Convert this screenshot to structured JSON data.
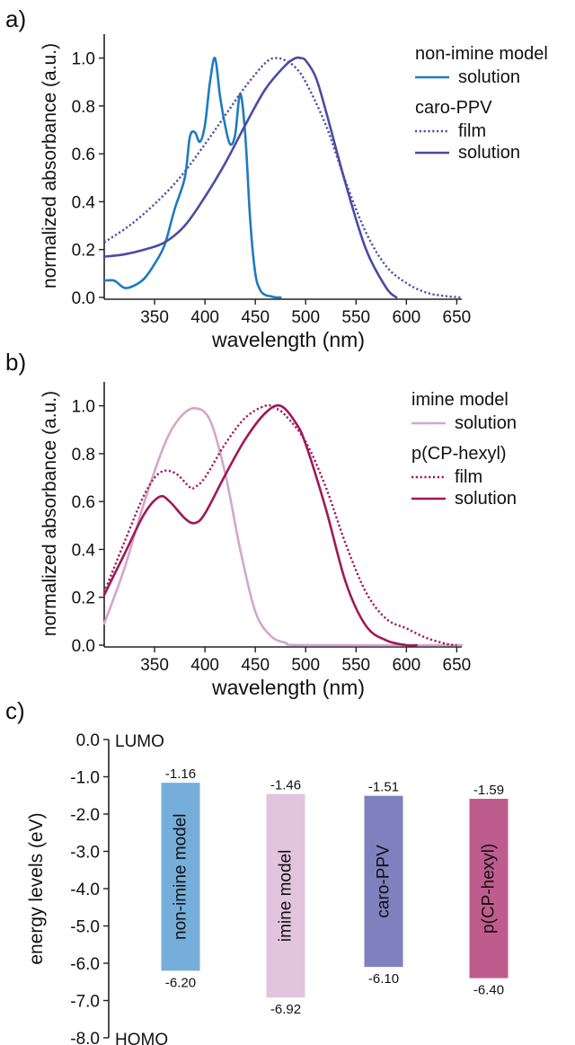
{
  "chart_data": [
    {
      "panel_label": "a)",
      "type": "line",
      "xlabel": "wavelength (nm)",
      "ylabel": "normalized absorbance (a.u.)",
      "xlim": [
        300,
        655
      ],
      "ylim": [
        0,
        1.1
      ],
      "xticks": [
        350,
        400,
        450,
        500,
        550,
        600,
        650
      ],
      "yticks": [
        0.0,
        0.2,
        0.4,
        0.6,
        0.8,
        1.0
      ],
      "yticks_labels": [
        "0.0",
        "0.2",
        "0.4",
        "0.6",
        "0.8",
        "1.0"
      ],
      "grid": false,
      "legend_position": "top-right",
      "legend_groups": [
        {
          "title": "non-imine model",
          "entries": [
            "solution"
          ]
        },
        {
          "title": "caro-PPV",
          "entries": [
            "film",
            "solution"
          ]
        }
      ],
      "series": [
        {
          "name": "solution",
          "group": "non-imine model",
          "color": "#1e7bc0",
          "style": "solid",
          "x": [
            300,
            310,
            320,
            330,
            340,
            350,
            360,
            370,
            380,
            385,
            390,
            395,
            400,
            405,
            410,
            415,
            420,
            425,
            430,
            435,
            440,
            445,
            450,
            455,
            460,
            465,
            470,
            475
          ],
          "y": [
            0.07,
            0.07,
            0.04,
            0.05,
            0.08,
            0.14,
            0.22,
            0.37,
            0.5,
            0.67,
            0.69,
            0.65,
            0.72,
            0.9,
            1.0,
            0.84,
            0.72,
            0.64,
            0.68,
            0.85,
            0.68,
            0.32,
            0.1,
            0.03,
            0.01,
            0.005,
            0.0,
            0.0
          ]
        },
        {
          "name": "film",
          "group": "caro-PPV",
          "color": "#4f4fa8",
          "style": "dotted",
          "x": [
            300,
            325,
            350,
            375,
            400,
            420,
            440,
            460,
            470,
            480,
            490,
            500,
            520,
            540,
            560,
            580,
            600,
            620,
            640,
            655
          ],
          "y": [
            0.23,
            0.3,
            0.39,
            0.5,
            0.64,
            0.76,
            0.88,
            0.98,
            1.0,
            0.99,
            0.96,
            0.9,
            0.72,
            0.48,
            0.27,
            0.13,
            0.06,
            0.02,
            0.005,
            0.0
          ]
        },
        {
          "name": "solution",
          "group": "caro-PPV",
          "color": "#4a4ba3",
          "style": "solid",
          "x": [
            300,
            320,
            340,
            360,
            380,
            400,
            420,
            440,
            460,
            480,
            490,
            495,
            500,
            510,
            520,
            540,
            560,
            580,
            590
          ],
          "y": [
            0.17,
            0.18,
            0.2,
            0.23,
            0.3,
            0.42,
            0.56,
            0.72,
            0.87,
            0.97,
            1.0,
            1.0,
            0.99,
            0.92,
            0.78,
            0.47,
            0.2,
            0.04,
            0.0
          ]
        }
      ]
    },
    {
      "panel_label": "b)",
      "type": "line",
      "xlabel": "wavelength (nm)",
      "ylabel": "normalized absorbance (a.u.)",
      "xlim": [
        300,
        655
      ],
      "ylim": [
        0,
        1.1
      ],
      "xticks": [
        350,
        400,
        450,
        500,
        550,
        600,
        650
      ],
      "yticks": [
        0.0,
        0.2,
        0.4,
        0.6,
        0.8,
        1.0
      ],
      "yticks_labels": [
        "0.0",
        "0.2",
        "0.4",
        "0.6",
        "0.8",
        "1.0"
      ],
      "grid": false,
      "legend_position": "top-right",
      "legend_groups": [
        {
          "title": "imine model",
          "entries": [
            "solution"
          ]
        },
        {
          "title": "p(CP-hexyl)",
          "entries": [
            "film",
            "solution"
          ]
        }
      ],
      "series": [
        {
          "name": "solution",
          "group": "imine model",
          "color": "#d4a6cc",
          "style": "solid",
          "x": [
            300,
            320,
            340,
            360,
            375,
            390,
            405,
            420,
            435,
            450,
            465,
            480,
            500,
            655
          ],
          "y": [
            0.09,
            0.32,
            0.6,
            0.84,
            0.95,
            0.99,
            0.94,
            0.72,
            0.4,
            0.14,
            0.04,
            0.01,
            0.0,
            0.0
          ]
        },
        {
          "name": "film",
          "group": "p(CP-hexyl)",
          "color": "#a0175a",
          "style": "dotted",
          "x": [
            300,
            320,
            340,
            355,
            370,
            385,
            390,
            400,
            420,
            440,
            460,
            470,
            480,
            500,
            520,
            540,
            560,
            580,
            600,
            620,
            640,
            650
          ],
          "y": [
            0.22,
            0.43,
            0.63,
            0.72,
            0.72,
            0.66,
            0.66,
            0.7,
            0.84,
            0.95,
            1.0,
            0.99,
            0.96,
            0.85,
            0.66,
            0.42,
            0.22,
            0.11,
            0.07,
            0.03,
            0.005,
            0.0
          ]
        },
        {
          "name": "solution",
          "group": "p(CP-hexyl)",
          "color": "#a0175a",
          "style": "solid",
          "x": [
            300,
            320,
            340,
            355,
            365,
            380,
            390,
            400,
            420,
            440,
            460,
            475,
            490,
            500,
            520,
            540,
            560,
            580,
            600,
            610
          ],
          "y": [
            0.21,
            0.38,
            0.55,
            0.62,
            0.6,
            0.53,
            0.51,
            0.55,
            0.71,
            0.86,
            0.97,
            1.0,
            0.93,
            0.84,
            0.57,
            0.26,
            0.08,
            0.02,
            0.0,
            0.0
          ]
        }
      ]
    },
    {
      "panel_label": "c)",
      "type": "bar",
      "ylabel": "energy levels (eV)",
      "ylim": [
        -8.0,
        0.0
      ],
      "yticks": [
        0.0,
        -1.0,
        -2.0,
        -3.0,
        -4.0,
        -5.0,
        -6.0,
        -7.0,
        -8.0
      ],
      "yticks_labels": [
        "0.0",
        "-1.0",
        "-2.0",
        "-3.0",
        "-4.0",
        "-5.0",
        "-6.0",
        "-7.0",
        "-8.0"
      ],
      "top_annotation": "LUMO",
      "bottom_annotation": "HOMO",
      "grid": false,
      "categories": [
        "non-imine model",
        "imine model",
        "caro-PPV",
        "p(CP-hexyl)"
      ],
      "lumo": [
        -1.16,
        -1.46,
        -1.51,
        -1.59
      ],
      "homo": [
        -6.2,
        -6.92,
        -6.1,
        -6.4
      ],
      "lumo_labels": [
        "-1.16",
        "-1.46",
        "-1.51",
        "-1.59"
      ],
      "homo_labels": [
        "-6.20",
        "-6.92",
        "-6.10",
        "-6.40"
      ],
      "colors": [
        "#76aedb",
        "#e2c4dc",
        "#7f80be",
        "#bf5c8e"
      ]
    }
  ]
}
